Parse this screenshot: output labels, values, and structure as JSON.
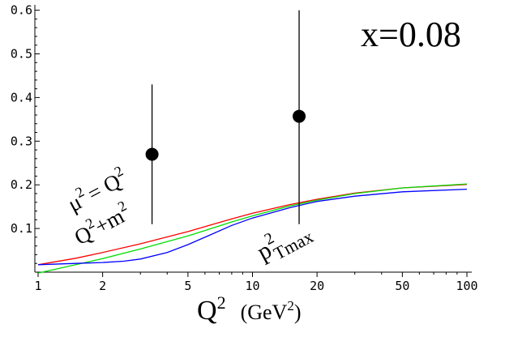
{
  "chart_data": {
    "type": "line",
    "annotation": "x=0.08",
    "xlabel": {
      "main": "Q",
      "sup": "2",
      "unit": "(GeV",
      "unit_sup": "2",
      "unit_close": ")"
    },
    "ylabel": "",
    "xscale": "log",
    "xlim": [
      1,
      100
    ],
    "ylim": [
      0,
      0.62
    ],
    "x_ticks": [
      {
        "value": 1,
        "label": "1"
      },
      {
        "value": 2,
        "label": "2"
      },
      {
        "value": 5,
        "label": "5"
      },
      {
        "value": 10,
        "label": "10"
      },
      {
        "value": 20,
        "label": "20"
      },
      {
        "value": 50,
        "label": "50"
      },
      {
        "value": 100,
        "label": "100"
      }
    ],
    "y_ticks": [
      {
        "value": 0.1,
        "label": "0.1"
      },
      {
        "value": 0.2,
        "label": "0.2"
      },
      {
        "value": 0.3,
        "label": "0.3"
      },
      {
        "value": 0.4,
        "label": "0.4"
      },
      {
        "value": 0.5,
        "label": "0.5"
      },
      {
        "value": 0.6,
        "label": "0.6"
      }
    ],
    "series": [
      {
        "color": "#ff0000",
        "x": [
          1,
          1.5,
          2,
          3,
          5,
          8,
          10,
          15,
          20,
          30,
          50,
          100
        ],
        "y": [
          0.017,
          0.032,
          0.045,
          0.065,
          0.093,
          0.122,
          0.135,
          0.155,
          0.167,
          0.181,
          0.193,
          0.201
        ]
      },
      {
        "color": "#00dd00",
        "x": [
          1,
          1.5,
          2,
          3,
          5,
          8,
          10,
          15,
          20,
          30,
          50,
          100
        ],
        "y": [
          -0.002,
          0.017,
          0.031,
          0.053,
          0.083,
          0.115,
          0.129,
          0.152,
          0.165,
          0.18,
          0.193,
          0.202
        ]
      },
      {
        "color": "#0000ff",
        "x": [
          1,
          1.5,
          2,
          2.5,
          3,
          4,
          5,
          6,
          8,
          10,
          15,
          20,
          30,
          50,
          100
        ],
        "y": [
          0.017,
          0.02,
          0.022,
          0.025,
          0.03,
          0.045,
          0.063,
          0.08,
          0.107,
          0.124,
          0.148,
          0.162,
          0.174,
          0.184,
          0.19
        ]
      }
    ],
    "points": [
      {
        "x": 3.4,
        "y": 0.27,
        "ylow": 0.11,
        "yhigh": 0.43
      },
      {
        "x": 16.5,
        "y": 0.357,
        "ylow": 0.11,
        "yhigh": 0.6
      }
    ],
    "curve_labels": {
      "mu": "μ",
      "mu_sup": "2",
      "eq": "= Q",
      "eq_sup": "2",
      "q2m2_q": "Q",
      "q2m2_sup": "2",
      "q2m2_rest": "+m",
      "q2m2_sup2": "2",
      "pt_p": "p",
      "pt_sup": "2",
      "pt_sub": "Tmax"
    }
  }
}
